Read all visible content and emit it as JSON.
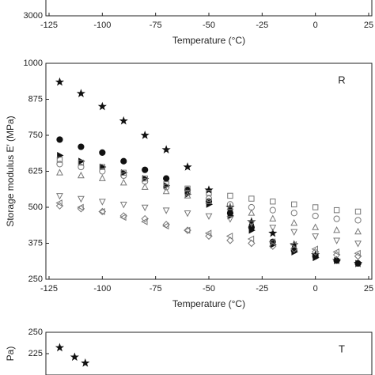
{
  "chart_data": [
    {
      "type": "scatter",
      "xlabel": "Temperature (°C)",
      "xlim": [
        -125,
        25
      ],
      "xticks": [
        -125,
        -100,
        -75,
        -50,
        -25,
        0,
        25
      ],
      "yticks": [
        3000
      ]
    },
    {
      "type": "scatter",
      "panel_label": "R",
      "xlabel": "Temperature (°C)",
      "ylabel": "Storage modulus E′ (MPa)",
      "xlim": [
        -125,
        25
      ],
      "xticks": [
        -125,
        -100,
        -75,
        -50,
        -25,
        0,
        25
      ],
      "ylim": [
        250,
        1000
      ],
      "yticks": [
        250,
        375,
        500,
        625,
        750,
        875,
        1000
      ],
      "x": [
        -120,
        -110,
        -100,
        -90,
        -80,
        -70,
        -60,
        -50,
        -40,
        -30,
        -20,
        -10,
        0,
        10,
        20
      ],
      "series": [
        {
          "marker": "star",
          "filled": true,
          "color": "#111111",
          "values": [
            935,
            895,
            850,
            800,
            750,
            700,
            640,
            560,
            500,
            450,
            410,
            370,
            335,
            315,
            305
          ]
        },
        {
          "marker": "circle",
          "filled": true,
          "color": "#111111",
          "values": [
            735,
            710,
            690,
            660,
            630,
            600,
            560,
            520,
            480,
            430,
            380,
            350,
            330,
            315,
            305
          ]
        },
        {
          "marker": "triangle-right",
          "filled": true,
          "color": "#111111",
          "values": [
            680,
            660,
            640,
            620,
            600,
            575,
            545,
            510,
            470,
            420,
            370,
            345,
            325,
            315,
            305
          ]
        },
        {
          "marker": "square",
          "filled": false,
          "color": "#777777",
          "values": [
            665,
            655,
            640,
            620,
            600,
            580,
            565,
            550,
            540,
            530,
            520,
            510,
            500,
            490,
            485
          ]
        },
        {
          "marker": "circle",
          "filled": false,
          "color": "#777777",
          "values": [
            650,
            640,
            625,
            610,
            590,
            570,
            550,
            530,
            510,
            500,
            490,
            480,
            470,
            460,
            455
          ]
        },
        {
          "marker": "triangle-up",
          "filled": false,
          "color": "#777777",
          "values": [
            620,
            610,
            600,
            585,
            570,
            555,
            540,
            520,
            500,
            480,
            460,
            445,
            430,
            420,
            415
          ]
        },
        {
          "marker": "triangle-down",
          "filled": false,
          "color": "#777777",
          "values": [
            540,
            530,
            520,
            510,
            500,
            490,
            480,
            470,
            460,
            445,
            430,
            415,
            400,
            385,
            375
          ]
        },
        {
          "marker": "diamond",
          "filled": false,
          "color": "#777777",
          "values": [
            505,
            495,
            485,
            470,
            460,
            440,
            420,
            400,
            385,
            375,
            365,
            355,
            345,
            335,
            330
          ]
        },
        {
          "marker": "triangle-left",
          "filled": false,
          "color": "#777777",
          "values": [
            515,
            500,
            485,
            465,
            450,
            435,
            420,
            410,
            400,
            390,
            380,
            370,
            355,
            345,
            340
          ]
        }
      ]
    },
    {
      "type": "scatter",
      "panel_label": "T",
      "ylabel": "Pa)",
      "xlim": [
        -125,
        25
      ],
      "ylim": [
        200,
        250
      ],
      "yticks": [
        225,
        250
      ],
      "x": [
        -120,
        -113,
        -108
      ],
      "series": [
        {
          "marker": "star",
          "filled": true,
          "color": "#111111",
          "values": [
            232,
            221,
            214
          ]
        }
      ]
    }
  ]
}
